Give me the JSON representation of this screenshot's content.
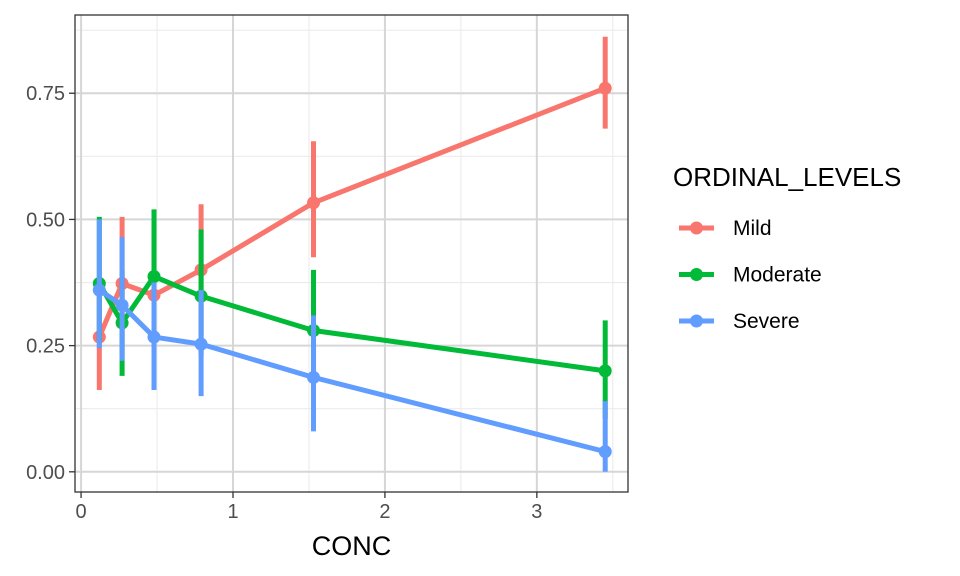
{
  "chart_data": {
    "type": "line",
    "title": "",
    "xlabel": "CONC",
    "ylabel": "",
    "xlim": [
      -0.04,
      3.6
    ],
    "ylim": [
      -0.04,
      0.905
    ],
    "x_ticks": [
      0,
      1,
      2,
      3
    ],
    "x_tick_labels": [
      "0",
      "1",
      "2",
      "3"
    ],
    "y_ticks": [
      0,
      0.25,
      0.5,
      0.75
    ],
    "y_tick_labels": [
      "0.00",
      "0.25",
      "0.50",
      "0.75"
    ],
    "grid": true,
    "legend": {
      "title": "ORDINAL_LEVELS",
      "position": "right"
    },
    "x": [
      0.12,
      0.27,
      0.48,
      0.79,
      1.53,
      3.45
    ],
    "series": [
      {
        "name": "Mild",
        "color": "#F8766D",
        "values": [
          0.267,
          0.373,
          0.35,
          0.4,
          0.533,
          0.76
        ],
        "lower": [
          0.162,
          0.24,
          0.25,
          0.27,
          0.425,
          0.68
        ],
        "upper": [
          0.375,
          0.505,
          0.46,
          0.53,
          0.655,
          0.862
        ]
      },
      {
        "name": "Moderate",
        "color": "#00BA38",
        "values": [
          0.373,
          0.295,
          0.387,
          0.348,
          0.28,
          0.2
        ],
        "lower": [
          0.26,
          0.19,
          0.27,
          0.23,
          0.17,
          0.105
        ],
        "upper": [
          0.505,
          0.4,
          0.52,
          0.48,
          0.4,
          0.3
        ]
      },
      {
        "name": "Severe",
        "color": "#619CFF",
        "values": [
          0.36,
          0.33,
          0.267,
          0.253,
          0.187,
          0.04
        ],
        "lower": [
          0.245,
          0.22,
          0.162,
          0.15,
          0.08,
          0.0
        ],
        "upper": [
          0.5,
          0.465,
          0.375,
          0.36,
          0.31,
          0.14
        ]
      }
    ]
  }
}
